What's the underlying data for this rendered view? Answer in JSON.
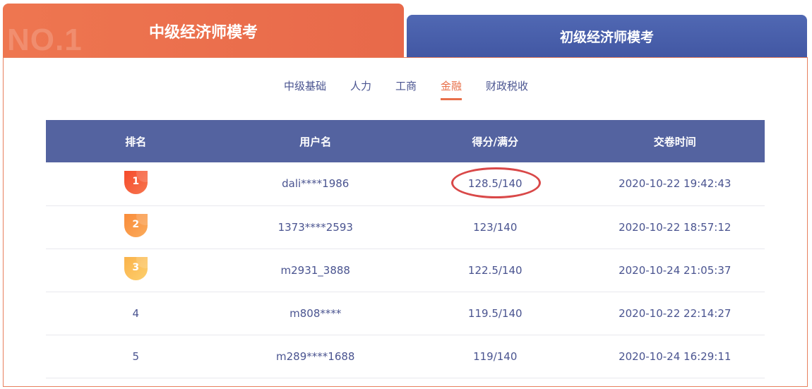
{
  "tabs": [
    {
      "label": "中级经济师模考",
      "badge": "NO.1",
      "active": true
    },
    {
      "label": "初级经济师模考",
      "active": false
    }
  ],
  "subtabs": [
    {
      "label": "中级基础"
    },
    {
      "label": "人力"
    },
    {
      "label": "工商"
    },
    {
      "label": "金融",
      "active": true
    },
    {
      "label": "财政税收"
    }
  ],
  "table": {
    "headers": [
      "排名",
      "用户名",
      "得分/满分",
      "交卷时间"
    ],
    "rows": [
      {
        "rank": "1",
        "user": "dali****1986",
        "score": "128.5/140",
        "time": "2020-10-22 19:42:43"
      },
      {
        "rank": "2",
        "user": "1373****2593",
        "score": "123/140",
        "time": "2020-10-22 18:57:12"
      },
      {
        "rank": "3",
        "user": "m2931_3888",
        "score": "122.5/140",
        "time": "2020-10-24 21:05:37"
      },
      {
        "rank": "4",
        "user": "m808****",
        "score": "119.5/140",
        "time": "2020-10-22 22:14:27"
      },
      {
        "rank": "5",
        "user": "m289****1688",
        "score": "119/140",
        "time": "2020-10-24 16:29:11"
      }
    ]
  },
  "colors": {
    "accent": "#e8704a",
    "header": "#5463a0",
    "annotation": "#d94848"
  }
}
